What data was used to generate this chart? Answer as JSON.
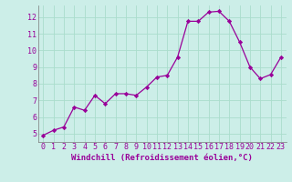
{
  "x": [
    0,
    1,
    2,
    3,
    4,
    5,
    6,
    7,
    8,
    9,
    10,
    11,
    12,
    13,
    14,
    15,
    16,
    17,
    18,
    19,
    20,
    21,
    22,
    23
  ],
  "y": [
    4.9,
    5.2,
    5.4,
    6.6,
    6.4,
    7.3,
    6.8,
    7.4,
    7.4,
    7.3,
    7.8,
    8.4,
    8.5,
    9.6,
    11.75,
    11.75,
    12.3,
    12.35,
    11.75,
    10.5,
    9.0,
    8.3,
    8.55,
    9.6
  ],
  "line_color": "#990099",
  "marker": "D",
  "marker_size": 2.2,
  "bg_color": "#cceee8",
  "grid_color": "#aaddcc",
  "xlabel": "Windchill (Refroidissement éolien,°C)",
  "xlabel_color": "#990099",
  "tick_color": "#990099",
  "axis_label_fontsize": 6.5,
  "tick_fontsize": 6,
  "xlim": [
    -0.5,
    23.5
  ],
  "ylim": [
    4.5,
    12.7
  ],
  "yticks": [
    5,
    6,
    7,
    8,
    9,
    10,
    11,
    12
  ],
  "xticks": [
    0,
    1,
    2,
    3,
    4,
    5,
    6,
    7,
    8,
    9,
    10,
    11,
    12,
    13,
    14,
    15,
    16,
    17,
    18,
    19,
    20,
    21,
    22,
    23
  ],
  "spine_color": "#aaaaaa"
}
